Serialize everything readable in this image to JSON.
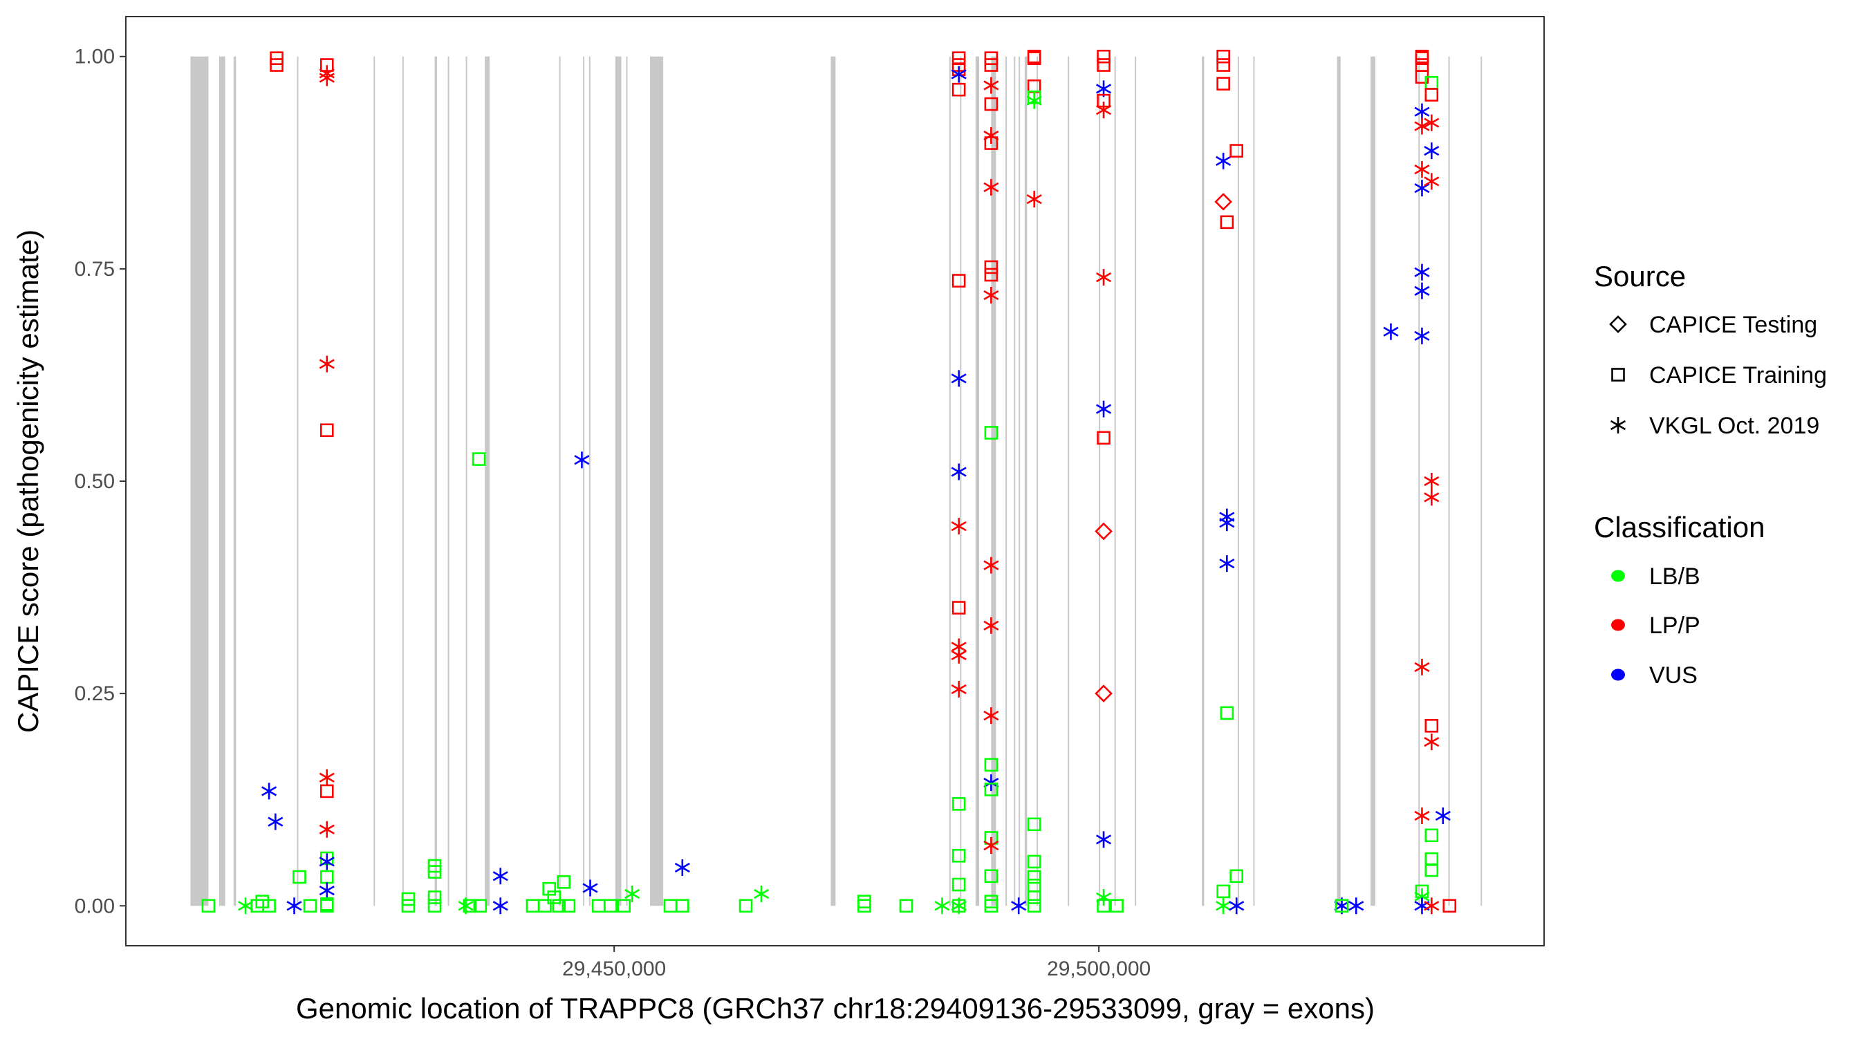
{
  "chart_data": {
    "type": "scatter",
    "title": "",
    "xlabel": "Genomic location of TRAPPC8 (GRCh37 chr18:29409136-29533099, gray = exons)",
    "ylabel": "CAPICE score (pathogenicity estimate)",
    "xlim": [
      29399628,
      29545928
    ],
    "ylim": [
      -0.047,
      1.047
    ],
    "x_ticks": [
      {
        "value": 29450000,
        "label": "29,450,000"
      },
      {
        "value": 29500000,
        "label": "29,500,000"
      }
    ],
    "y_ticks": [
      {
        "value": 0,
        "label": "0.00"
      },
      {
        "value": 0.25,
        "label": "0.25"
      },
      {
        "value": 0.5,
        "label": "0.50"
      },
      {
        "value": 0.75,
        "label": "0.75"
      },
      {
        "value": 1,
        "label": "1.00"
      }
    ],
    "grid": false,
    "legend_position": "right",
    "legend": {
      "source_title": "Source",
      "sources": [
        {
          "code": "T",
          "label": "CAPICE Testing",
          "shape": "diamond"
        },
        {
          "code": "R",
          "label": "CAPICE Training",
          "shape": "square"
        },
        {
          "code": "V",
          "label": "VKGL Oct. 2019",
          "shape": "asterisk"
        }
      ],
      "class_title": "Classification",
      "classes": [
        {
          "code": "B",
          "label": "LB/B",
          "color": "#00ff00"
        },
        {
          "code": "P",
          "label": "LP/P",
          "color": "#ff0000"
        },
        {
          "code": "U",
          "label": "VUS",
          "color": "#0000ff"
        }
      ]
    },
    "exon_color": "#c8c8c8",
    "exons": [
      [
        29406295,
        29408147
      ],
      [
        29409258,
        29409875
      ],
      [
        29410740,
        29410990
      ],
      [
        29417283,
        29417400
      ],
      [
        29425185,
        29425300
      ],
      [
        29428148,
        29428270
      ],
      [
        29431481,
        29431728
      ],
      [
        29432839,
        29432960
      ],
      [
        29434691,
        29434810
      ],
      [
        29436666,
        29437160
      ],
      [
        29444321,
        29444440
      ],
      [
        29446790,
        29446910
      ],
      [
        29447407,
        29447530
      ],
      [
        29450123,
        29450741
      ],
      [
        29451235,
        29451355
      ],
      [
        29453704,
        29455062
      ],
      [
        29472346,
        29472840
      ],
      [
        29484569,
        29484690
      ],
      [
        29485680,
        29485800
      ],
      [
        29487285,
        29487655
      ],
      [
        29488890,
        29489384
      ],
      [
        29490371,
        29490490
      ],
      [
        29491236,
        29491355
      ],
      [
        29491729,
        29491850
      ],
      [
        29492347,
        29492594
      ],
      [
        29493581,
        29493700
      ],
      [
        29496791,
        29496910
      ],
      [
        29500001,
        29500120
      ],
      [
        29501606,
        29501725
      ],
      [
        29503705,
        29503825
      ],
      [
        29510619,
        29510866
      ],
      [
        29514323,
        29514440
      ],
      [
        29515928,
        29516045
      ],
      [
        29524570,
        29524940
      ],
      [
        29528027,
        29528521
      ],
      [
        29532965,
        29533085
      ],
      [
        29536052,
        29536170
      ],
      [
        29539385,
        29539500
      ]
    ],
    "points": [
      [
        29408147,
        0.0,
        "R",
        "B"
      ],
      [
        29411974,
        0.0,
        "V",
        "B"
      ],
      [
        29413200,
        0.0,
        "R",
        "B"
      ],
      [
        29413700,
        0.005,
        "R",
        "B"
      ],
      [
        29414400,
        0.0,
        "R",
        "B"
      ],
      [
        29414400,
        0.135,
        "V",
        "U"
      ],
      [
        29415060,
        0.099,
        "V",
        "U"
      ],
      [
        29415184,
        0.99,
        "R",
        "P"
      ],
      [
        29415184,
        0.998,
        "R",
        "P"
      ],
      [
        29417530,
        0.034,
        "R",
        "B"
      ],
      [
        29417000,
        0.0,
        "V",
        "U"
      ],
      [
        29418640,
        0.0,
        "R",
        "B"
      ],
      [
        29420370,
        0.98,
        "V",
        "P"
      ],
      [
        29420370,
        0.975,
        "V",
        "P"
      ],
      [
        29420370,
        0.99,
        "R",
        "P"
      ],
      [
        29420370,
        0.638,
        "V",
        "P"
      ],
      [
        29420370,
        0.56,
        "R",
        "P"
      ],
      [
        29420370,
        0.151,
        "V",
        "P"
      ],
      [
        29420370,
        0.135,
        "R",
        "P"
      ],
      [
        29420370,
        0.09,
        "V",
        "P"
      ],
      [
        29420370,
        0.056,
        "R",
        "B"
      ],
      [
        29420370,
        0.052,
        "V",
        "U"
      ],
      [
        29420370,
        0.034,
        "R",
        "B"
      ],
      [
        29420370,
        0.018,
        "V",
        "U"
      ],
      [
        29420370,
        0.002,
        "R",
        "B"
      ],
      [
        29420370,
        0.0,
        "R",
        "B"
      ],
      [
        29428765,
        0.0,
        "R",
        "B"
      ],
      [
        29428765,
        0.008,
        "R",
        "B"
      ],
      [
        29431481,
        0.04,
        "R",
        "B"
      ],
      [
        29431481,
        0.047,
        "R",
        "B"
      ],
      [
        29431481,
        0.01,
        "R",
        "B"
      ],
      [
        29431481,
        0.0,
        "R",
        "B"
      ],
      [
        29434691,
        0.0,
        "V",
        "B"
      ],
      [
        29435100,
        0.0,
        "R",
        "B"
      ],
      [
        29436049,
        0.526,
        "R",
        "B"
      ],
      [
        29436172,
        0.0,
        "R",
        "B"
      ],
      [
        29438271,
        0.035,
        "V",
        "U"
      ],
      [
        29438271,
        0.0,
        "V",
        "U"
      ],
      [
        29441605,
        0.0,
        "R",
        "B"
      ],
      [
        29442840,
        0.0,
        "R",
        "B"
      ],
      [
        29443300,
        0.02,
        "R",
        "B"
      ],
      [
        29443800,
        0.01,
        "R",
        "B"
      ],
      [
        29444300,
        0.0,
        "R",
        "B"
      ],
      [
        29444800,
        0.028,
        "R",
        "B"
      ],
      [
        29445309,
        0.0,
        "R",
        "B"
      ],
      [
        29446667,
        0.525,
        "V",
        "U"
      ],
      [
        29447531,
        0.021,
        "V",
        "U"
      ],
      [
        29448395,
        0.0,
        "R",
        "B"
      ],
      [
        29449630,
        0.0,
        "R",
        "B"
      ],
      [
        29451852,
        0.014,
        "V",
        "B"
      ],
      [
        29451000,
        0.0,
        "R",
        "B"
      ],
      [
        29455803,
        0.0,
        "R",
        "B"
      ],
      [
        29457037,
        0.0,
        "R",
        "B"
      ],
      [
        29457037,
        0.045,
        "V",
        "U"
      ],
      [
        29463581,
        0.0,
        "R",
        "B"
      ],
      [
        29465186,
        0.014,
        "V",
        "B"
      ],
      [
        29475803,
        0.0,
        "R",
        "B"
      ],
      [
        29475803,
        0.005,
        "R",
        "B"
      ],
      [
        29480124,
        0.0,
        "R",
        "B"
      ],
      [
        29483828,
        0.0,
        "V",
        "B"
      ],
      [
        29485556,
        0.998,
        "R",
        "P"
      ],
      [
        29485556,
        0.99,
        "R",
        "P"
      ],
      [
        29485556,
        0.985,
        "R",
        "P"
      ],
      [
        29485556,
        0.979,
        "V",
        "U"
      ],
      [
        29485556,
        0.961,
        "R",
        "P"
      ],
      [
        29485556,
        0.736,
        "R",
        "P"
      ],
      [
        29485556,
        0.621,
        "V",
        "U"
      ],
      [
        29485556,
        0.511,
        "V",
        "U"
      ],
      [
        29485556,
        0.447,
        "V",
        "P"
      ],
      [
        29485556,
        0.351,
        "R",
        "P"
      ],
      [
        29485556,
        0.305,
        "V",
        "P"
      ],
      [
        29485556,
        0.295,
        "V",
        "P"
      ],
      [
        29485556,
        0.255,
        "V",
        "P"
      ],
      [
        29485556,
        0.12,
        "R",
        "B"
      ],
      [
        29485556,
        0.059,
        "R",
        "B"
      ],
      [
        29485556,
        0.025,
        "R",
        "B"
      ],
      [
        29485556,
        0.0,
        "R",
        "B"
      ],
      [
        29485556,
        0.0,
        "V",
        "B"
      ],
      [
        29488890,
        0.998,
        "R",
        "P"
      ],
      [
        29488890,
        0.99,
        "R",
        "P"
      ],
      [
        29488890,
        0.966,
        "V",
        "P"
      ],
      [
        29488890,
        0.944,
        "R",
        "P"
      ],
      [
        29488890,
        0.907,
        "V",
        "P"
      ],
      [
        29488890,
        0.898,
        "R",
        "P"
      ],
      [
        29488890,
        0.846,
        "V",
        "P"
      ],
      [
        29488890,
        0.752,
        "R",
        "P"
      ],
      [
        29488890,
        0.743,
        "R",
        "P"
      ],
      [
        29488890,
        0.719,
        "V",
        "P"
      ],
      [
        29488890,
        0.557,
        "R",
        "B"
      ],
      [
        29488890,
        0.401,
        "V",
        "P"
      ],
      [
        29488890,
        0.33,
        "V",
        "P"
      ],
      [
        29488890,
        0.224,
        "V",
        "P"
      ],
      [
        29488890,
        0.166,
        "R",
        "B"
      ],
      [
        29488890,
        0.145,
        "V",
        "U"
      ],
      [
        29488890,
        0.137,
        "R",
        "B"
      ],
      [
        29488890,
        0.08,
        "R",
        "B"
      ],
      [
        29488890,
        0.071,
        "V",
        "P"
      ],
      [
        29488890,
        0.035,
        "R",
        "B"
      ],
      [
        29488890,
        0.005,
        "R",
        "B"
      ],
      [
        29488890,
        0.0,
        "R",
        "B"
      ],
      [
        29491729,
        0.0,
        "V",
        "U"
      ],
      [
        29493334,
        1.0,
        "R",
        "P"
      ],
      [
        29493334,
        0.998,
        "R",
        "P"
      ],
      [
        29493334,
        0.965,
        "R",
        "P"
      ],
      [
        29493334,
        0.952,
        "R",
        "B"
      ],
      [
        29493334,
        0.948,
        "V",
        "B"
      ],
      [
        29493334,
        0.832,
        "V",
        "P"
      ],
      [
        29493334,
        0.096,
        "R",
        "B"
      ],
      [
        29493334,
        0.052,
        "R",
        "B"
      ],
      [
        29493334,
        0.034,
        "R",
        "B"
      ],
      [
        29493334,
        0.024,
        "R",
        "B"
      ],
      [
        29493334,
        0.01,
        "R",
        "B"
      ],
      [
        29493334,
        0.0,
        "R",
        "B"
      ],
      [
        29500494,
        1.0,
        "R",
        "P"
      ],
      [
        29500494,
        0.99,
        "R",
        "P"
      ],
      [
        29500494,
        0.962,
        "V",
        "U"
      ],
      [
        29500494,
        0.948,
        "R",
        "P"
      ],
      [
        29500494,
        0.937,
        "V",
        "P"
      ],
      [
        29500494,
        0.74,
        "V",
        "P"
      ],
      [
        29500494,
        0.585,
        "V",
        "U"
      ],
      [
        29500494,
        0.551,
        "R",
        "P"
      ],
      [
        29500494,
        0.441,
        "T",
        "P"
      ],
      [
        29500494,
        0.25,
        "T",
        "P"
      ],
      [
        29500494,
        0.078,
        "V",
        "U"
      ],
      [
        29500494,
        0.01,
        "V",
        "B"
      ],
      [
        29500494,
        0.0,
        "R",
        "B"
      ],
      [
        29501852,
        0.0,
        "R",
        "B"
      ],
      [
        29512841,
        1.0,
        "R",
        "P"
      ],
      [
        29512841,
        0.99,
        "R",
        "P"
      ],
      [
        29512841,
        0.968,
        "R",
        "P"
      ],
      [
        29512841,
        0.877,
        "V",
        "U"
      ],
      [
        29512841,
        0.829,
        "T",
        "P"
      ],
      [
        29513211,
        0.805,
        "R",
        "P"
      ],
      [
        29513211,
        0.458,
        "V",
        "U"
      ],
      [
        29513211,
        0.451,
        "V",
        "U"
      ],
      [
        29513211,
        0.403,
        "V",
        "U"
      ],
      [
        29513211,
        0.227,
        "R",
        "B"
      ],
      [
        29512841,
        0.017,
        "R",
        "B"
      ],
      [
        29512841,
        0.0,
        "V",
        "B"
      ],
      [
        29514200,
        0.889,
        "R",
        "P"
      ],
      [
        29514200,
        0.035,
        "R",
        "B"
      ],
      [
        29514200,
        0.0,
        "V",
        "U"
      ],
      [
        29525064,
        0.0,
        "V",
        "U"
      ],
      [
        29525064,
        0.0,
        "R",
        "B"
      ],
      [
        29526545,
        0.0,
        "V",
        "U"
      ],
      [
        29530125,
        0.676,
        "V",
        "U"
      ],
      [
        29533335,
        1.0,
        "R",
        "P"
      ],
      [
        29533335,
        0.998,
        "R",
        "P"
      ],
      [
        29533335,
        0.99,
        "R",
        "P"
      ],
      [
        29533335,
        0.976,
        "R",
        "P"
      ],
      [
        29533335,
        0.935,
        "V",
        "U"
      ],
      [
        29533335,
        0.918,
        "V",
        "P"
      ],
      [
        29533335,
        0.867,
        "V",
        "P"
      ],
      [
        29533335,
        0.845,
        "V",
        "U"
      ],
      [
        29533335,
        0.746,
        "V",
        "U"
      ],
      [
        29533335,
        0.724,
        "V",
        "U"
      ],
      [
        29533335,
        0.671,
        "V",
        "U"
      ],
      [
        29533335,
        0.281,
        "V",
        "P"
      ],
      [
        29533335,
        0.106,
        "V",
        "P"
      ],
      [
        29533335,
        0.017,
        "R",
        "B"
      ],
      [
        29533335,
        0.011,
        "V",
        "B"
      ],
      [
        29533335,
        0.0,
        "V",
        "U"
      ],
      [
        29534323,
        0.969,
        "R",
        "B"
      ],
      [
        29534323,
        0.955,
        "R",
        "P"
      ],
      [
        29534323,
        0.922,
        "V",
        "P"
      ],
      [
        29534323,
        0.889,
        "V",
        "U"
      ],
      [
        29534323,
        0.853,
        "V",
        "P"
      ],
      [
        29534323,
        0.5,
        "V",
        "P"
      ],
      [
        29534323,
        0.481,
        "V",
        "P"
      ],
      [
        29534323,
        0.212,
        "R",
        "P"
      ],
      [
        29534323,
        0.193,
        "V",
        "P"
      ],
      [
        29534323,
        0.083,
        "R",
        "B"
      ],
      [
        29534323,
        0.055,
        "R",
        "B"
      ],
      [
        29534323,
        0.042,
        "R",
        "B"
      ],
      [
        29534323,
        0.0,
        "V",
        "P"
      ],
      [
        29535500,
        0.106,
        "V",
        "U"
      ],
      [
        29536175,
        0.0,
        "R",
        "P"
      ]
    ]
  }
}
